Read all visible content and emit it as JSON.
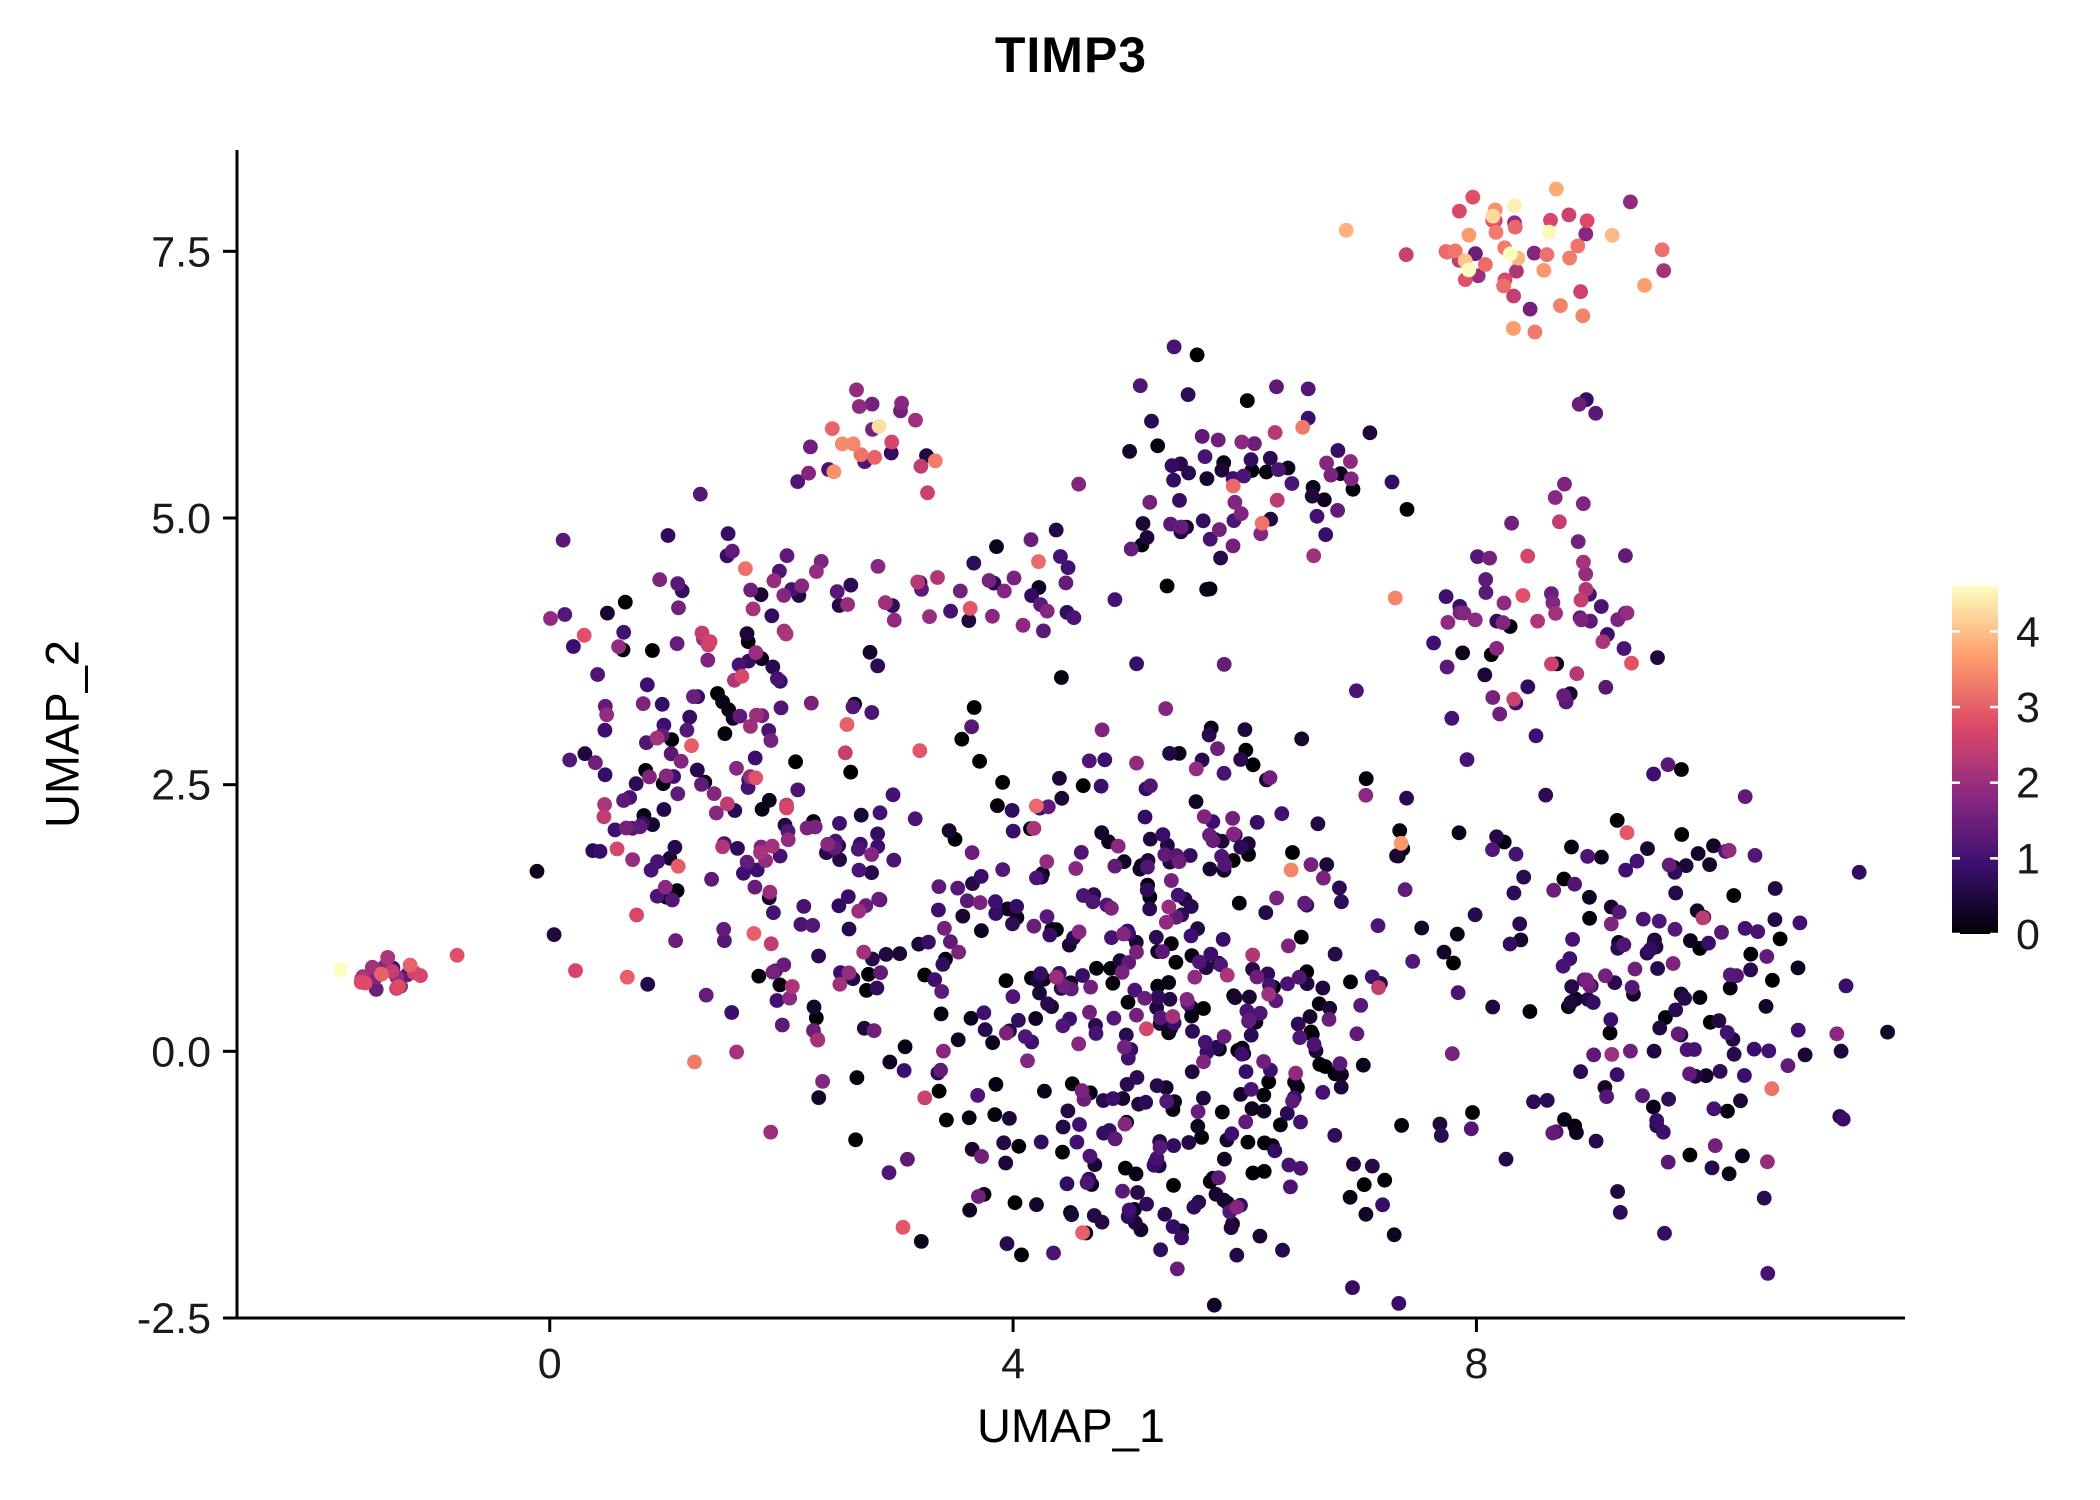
{
  "chart_data": {
    "type": "scatter",
    "title": "TIMP3",
    "xlabel": "UMAP_1",
    "ylabel": "UMAP_2",
    "xlim": [
      -2.7,
      11.7
    ],
    "ylim": [
      -2.5,
      8.45
    ],
    "grid": false,
    "background": "#ffffff",
    "axis_color": "#000000",
    "tick_label_color": "#1a1a1a",
    "x_ticks": [
      {
        "label": "0",
        "value": 0
      },
      {
        "label": "4",
        "value": 4
      },
      {
        "label": "8",
        "value": 8
      }
    ],
    "y_ticks": [
      {
        "label": "-2.5",
        "value": -2.5
      },
      {
        "label": "0.0",
        "value": 0
      },
      {
        "label": "2.5",
        "value": 2.5
      },
      {
        "label": "5.0",
        "value": 5
      },
      {
        "label": "7.5",
        "value": 7.5
      }
    ],
    "legend": {
      "position": "right",
      "domain": [
        0,
        4.6
      ],
      "ticks": [
        {
          "label": "4",
          "value": 4
        },
        {
          "label": "3",
          "value": 3
        },
        {
          "label": "2",
          "value": 2
        },
        {
          "label": "1",
          "value": 1
        },
        {
          "label": "0",
          "value": 0
        }
      ]
    },
    "colormap": {
      "name": "magma",
      "stops": [
        {
          "t": 0.0,
          "color": "#000004"
        },
        {
          "t": 0.2,
          "color": "#3B0F70"
        },
        {
          "t": 0.4,
          "color": "#8C2981"
        },
        {
          "t": 0.6,
          "color": "#DE4968"
        },
        {
          "t": 0.8,
          "color": "#FE9F6D"
        },
        {
          "t": 1.0,
          "color": "#FCFDBF"
        }
      ]
    },
    "point_radius": 7.4,
    "seed": 42,
    "clusters": [
      {
        "name": "top-right-high",
        "cx": 8.45,
        "cy": 7.55,
        "sx": 0.48,
        "sy": 0.26,
        "n": 48,
        "v_mean": 3.0,
        "v_sd": 0.85
      },
      {
        "name": "top-right-straggle",
        "cx": 8.5,
        "cy": 6.9,
        "sx": 0.25,
        "sy": 0.15,
        "n": 4,
        "v_mean": 2.8,
        "v_sd": 0.8
      },
      {
        "name": "right-upper-small",
        "cx": 8.8,
        "cy": 6.0,
        "sx": 0.15,
        "sy": 0.1,
        "n": 3,
        "v_mean": 1.2,
        "v_sd": 0.5
      },
      {
        "name": "top-left-pink",
        "cx": 2.72,
        "cy": 5.7,
        "sx": 0.28,
        "sy": 0.33,
        "n": 25,
        "v_mean": 2.3,
        "v_sd": 1.0
      },
      {
        "name": "top-center",
        "cx": 5.9,
        "cy": 5.35,
        "sx": 0.52,
        "sy": 0.45,
        "n": 65,
        "v_mean": 1.0,
        "v_sd": 0.75
      },
      {
        "name": "upper-mid-sparse",
        "cx": 6.6,
        "cy": 5.6,
        "sx": 0.3,
        "sy": 0.35,
        "n": 8,
        "v_mean": 0.9,
        "v_sd": 0.6
      },
      {
        "name": "right-mid",
        "cx": 8.7,
        "cy": 4.1,
        "sx": 0.38,
        "sy": 0.55,
        "n": 45,
        "v_mean": 1.6,
        "v_sd": 0.8
      },
      {
        "name": "right-mid-left",
        "cx": 8.0,
        "cy": 4.0,
        "sx": 0.22,
        "sy": 0.32,
        "n": 14,
        "v_mean": 1.4,
        "v_sd": 0.7
      },
      {
        "name": "left-large",
        "cx": 1.3,
        "cy": 2.65,
        "sx": 0.7,
        "sy": 1.05,
        "n": 170,
        "v_mean": 1.2,
        "v_sd": 0.8
      },
      {
        "name": "left-bridge",
        "cx": 2.5,
        "cy": 1.0,
        "sx": 0.45,
        "sy": 0.8,
        "n": 50,
        "v_mean": 1.0,
        "v_sd": 0.7
      },
      {
        "name": "far-left",
        "cx": -1.45,
        "cy": 0.72,
        "sx": 0.2,
        "sy": 0.09,
        "n": 22,
        "v_mean": 2.2,
        "v_sd": 0.8
      },
      {
        "name": "band-left",
        "cx": 2.6,
        "cy": 4.35,
        "sx": 0.55,
        "sy": 0.18,
        "n": 22,
        "v_mean": 1.5,
        "v_sd": 0.9
      },
      {
        "name": "band-right",
        "cx": 4.15,
        "cy": 4.3,
        "sx": 0.45,
        "sy": 0.25,
        "n": 28,
        "v_mean": 1.4,
        "v_sd": 0.8
      },
      {
        "name": "center-large",
        "cx": 5.15,
        "cy": 0.95,
        "sx": 1.45,
        "sy": 1.15,
        "n": 430,
        "v_mean": 0.75,
        "v_sd": 0.65
      },
      {
        "name": "center-bottom",
        "cx": 5.4,
        "cy": -1.1,
        "sx": 0.9,
        "sy": 0.45,
        "n": 90,
        "v_mean": 0.45,
        "v_sd": 0.45
      },
      {
        "name": "bottom-right",
        "cx": 9.7,
        "cy": 0.6,
        "sx": 0.68,
        "sy": 0.9,
        "n": 160,
        "v_mean": 0.7,
        "v_sd": 0.6
      }
    ],
    "extra_points": [
      {
        "x": -0.8,
        "y": 0.9,
        "v": 2.8
      },
      {
        "x": 6.5,
        "y": 5.85,
        "v": 3.3
      },
      {
        "x": 6.15,
        "y": 4.95,
        "v": 3.2
      },
      {
        "x": 7.3,
        "y": 4.25,
        "v": 3.4
      },
      {
        "x": 4.2,
        "y": 2.3,
        "v": 3.1
      },
      {
        "x": 6.4,
        "y": 1.7,
        "v": 3.4
      },
      {
        "x": 7.35,
        "y": 1.95,
        "v": 3.6
      },
      {
        "x": 9.3,
        "y": 2.05,
        "v": 2.9
      },
      {
        "x": 10.55,
        "y": -0.35,
        "v": 3.2
      },
      {
        "x": 1.25,
        "y": -0.1,
        "v": 3.3
      },
      {
        "x": 3.05,
        "y": -1.65,
        "v": 2.9
      },
      {
        "x": 4.6,
        "y": -1.7,
        "v": 3.0
      },
      {
        "x": 5.9,
        "y": 5.3,
        "v": 3.1
      }
    ]
  }
}
